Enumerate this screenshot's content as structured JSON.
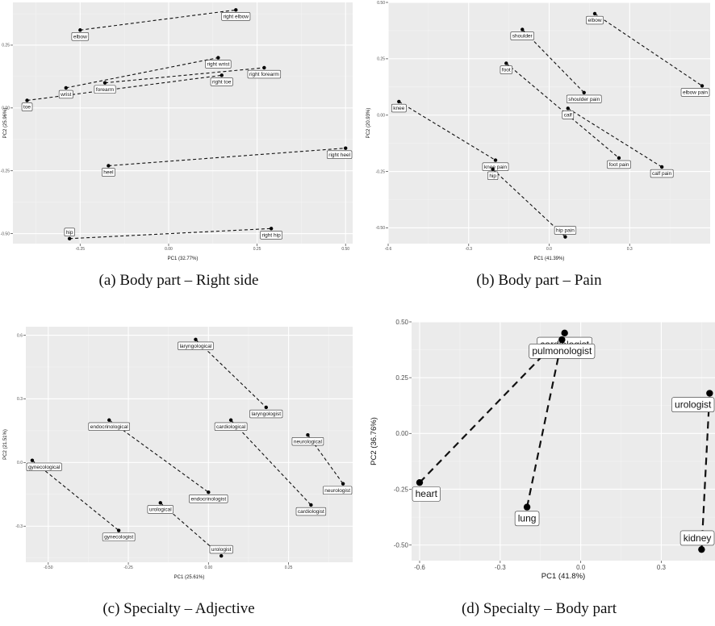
{
  "chart_data": [
    {
      "type": "scatter",
      "xlabel": "PC1 (32.77%)",
      "ylabel": "PC2 (25.96%)",
      "xlim": [
        -0.44,
        0.52
      ],
      "ylim": [
        -0.54,
        0.42
      ],
      "x_ticks": [
        -0.25,
        0.0,
        0.25,
        0.5
      ],
      "x_tick_labels": [
        "-0.25",
        "0.00",
        "0.25",
        "0.50"
      ],
      "y_ticks": [
        -0.5,
        -0.25,
        0.0,
        0.25
      ],
      "y_tick_labels": [
        "-0.50",
        "-0.25",
        "0.00",
        "0.25"
      ],
      "points": [
        {
          "label": "elbow",
          "x": -0.25,
          "y": 0.31
        },
        {
          "label": "right elbow",
          "x": 0.19,
          "y": 0.39
        },
        {
          "label": "forearm",
          "x": -0.18,
          "y": 0.1
        },
        {
          "label": "right forearm",
          "x": 0.27,
          "y": 0.16
        },
        {
          "label": "wrist",
          "x": -0.29,
          "y": 0.08
        },
        {
          "label": "right wrist",
          "x": 0.14,
          "y": 0.2
        },
        {
          "label": "toe",
          "x": -0.4,
          "y": 0.03
        },
        {
          "label": "right toe",
          "x": 0.15,
          "y": 0.13
        },
        {
          "label": "heel",
          "x": -0.17,
          "y": -0.23
        },
        {
          "label": "right heel",
          "x": 0.5,
          "y": -0.16
        },
        {
          "label": "hip",
          "x": -0.28,
          "y": -0.52
        },
        {
          "label": "right hip",
          "x": 0.29,
          "y": -0.48
        }
      ],
      "pairs": [
        [
          "elbow",
          "right elbow"
        ],
        [
          "forearm",
          "right forearm"
        ],
        [
          "wrist",
          "right wrist"
        ],
        [
          "toe",
          "right toe"
        ],
        [
          "heel",
          "right heel"
        ],
        [
          "hip",
          "right hip"
        ]
      ]
    },
    {
      "type": "scatter",
      "xlabel": "PC1 (41.39%)",
      "ylabel": "PC2 (20.93%)",
      "xlim": [
        -0.6,
        0.6
      ],
      "ylim": [
        -0.57,
        0.5
      ],
      "x_ticks": [
        -0.6,
        -0.3,
        0.0,
        0.3
      ],
      "x_tick_labels": [
        "-0.6",
        "-0.3",
        "0.0",
        "0.3"
      ],
      "y_ticks": [
        -0.5,
        -0.25,
        0.0,
        0.25,
        0.5
      ],
      "y_tick_labels": [
        "-0.50",
        "-0.25",
        "0.00",
        "0.25",
        "0.50"
      ],
      "points": [
        {
          "label": "elbow",
          "x": 0.17,
          "y": 0.45
        },
        {
          "label": "elbow pain",
          "x": 0.57,
          "y": 0.13
        },
        {
          "label": "shoulder",
          "x": -0.1,
          "y": 0.38
        },
        {
          "label": "shoulder pain",
          "x": 0.13,
          "y": 0.1
        },
        {
          "label": "foot",
          "x": -0.16,
          "y": 0.23
        },
        {
          "label": "foot pain",
          "x": 0.26,
          "y": -0.19
        },
        {
          "label": "knee",
          "x": -0.56,
          "y": 0.06
        },
        {
          "label": "knee pain",
          "x": -0.2,
          "y": -0.2
        },
        {
          "label": "calf",
          "x": 0.07,
          "y": 0.03
        },
        {
          "label": "calf pain",
          "x": 0.42,
          "y": -0.23
        },
        {
          "label": "hip",
          "x": -0.21,
          "y": -0.24
        },
        {
          "label": "hip pain",
          "x": 0.06,
          "y": -0.54
        }
      ],
      "pairs": [
        [
          "elbow",
          "elbow pain"
        ],
        [
          "shoulder",
          "shoulder pain"
        ],
        [
          "foot",
          "foot pain"
        ],
        [
          "knee",
          "knee pain"
        ],
        [
          "calf",
          "calf pain"
        ],
        [
          "hip",
          "hip pain"
        ]
      ]
    },
    {
      "type": "scatter",
      "xlabel": "PC1 (25.61%)",
      "ylabel": "PC2 (21.51%)",
      "xlim": [
        -0.57,
        0.45
      ],
      "ylim": [
        -0.47,
        0.64
      ],
      "x_ticks": [
        -0.5,
        -0.25,
        0.0,
        0.25
      ],
      "x_tick_labels": [
        "-0.50",
        "-0.25",
        "0.00",
        "0.25"
      ],
      "y_ticks": [
        -0.3,
        0.0,
        0.3,
        0.6
      ],
      "y_tick_labels": [
        "-0.3",
        "0.0",
        "0.3",
        "0.6"
      ],
      "points": [
        {
          "label": "laryngological",
          "x": -0.04,
          "y": 0.58
        },
        {
          "label": "laryngologist",
          "x": 0.18,
          "y": 0.26
        },
        {
          "label": "endocrinological",
          "x": -0.31,
          "y": 0.2
        },
        {
          "label": "endocrinologist",
          "x": 0.0,
          "y": -0.14
        },
        {
          "label": "cardiological",
          "x": 0.07,
          "y": 0.2
        },
        {
          "label": "cardiologist",
          "x": 0.32,
          "y": -0.2
        },
        {
          "label": "neurological",
          "x": 0.31,
          "y": 0.13
        },
        {
          "label": "neurologist",
          "x": 0.42,
          "y": -0.1
        },
        {
          "label": "gynecological",
          "x": -0.55,
          "y": 0.01
        },
        {
          "label": "gynecologist",
          "x": -0.28,
          "y": -0.32
        },
        {
          "label": "urological",
          "x": -0.15,
          "y": -0.19
        },
        {
          "label": "urologist",
          "x": 0.04,
          "y": -0.44
        }
      ],
      "pairs": [
        [
          "laryngological",
          "laryngologist"
        ],
        [
          "endocrinological",
          "endocrinologist"
        ],
        [
          "cardiological",
          "cardiologist"
        ],
        [
          "neurological",
          "neurologist"
        ],
        [
          "gynecological",
          "gynecologist"
        ],
        [
          "urological",
          "urologist"
        ]
      ]
    },
    {
      "type": "scatter",
      "xlabel": "PC1 (41.8%)",
      "ylabel": "PC2 (36.76%)",
      "xlim": [
        -0.63,
        0.5
      ],
      "ylim": [
        -0.57,
        0.5
      ],
      "x_ticks": [
        -0.6,
        -0.3,
        0.0,
        0.3
      ],
      "x_tick_labels": [
        "-0.6",
        "-0.3",
        "0.0",
        "0.3"
      ],
      "y_ticks": [
        -0.5,
        -0.25,
        0.0,
        0.25,
        0.5
      ],
      "y_tick_labels": [
        "-0.50",
        "-0.25",
        "0.00",
        "0.25",
        "0.50"
      ],
      "points": [
        {
          "label": "cardiologist",
          "x": -0.06,
          "y": 0.45
        },
        {
          "label": "pulmonologist",
          "x": -0.07,
          "y": 0.42
        },
        {
          "label": "urologist",
          "x": 0.48,
          "y": 0.18
        },
        {
          "label": "heart",
          "x": -0.6,
          "y": -0.22
        },
        {
          "label": "lung",
          "x": -0.2,
          "y": -0.33
        },
        {
          "label": "kidney",
          "x": 0.45,
          "y": -0.52
        }
      ],
      "pairs": [
        [
          "heart",
          "cardiologist"
        ],
        [
          "lung",
          "pulmonologist"
        ],
        [
          "kidney",
          "urologist"
        ]
      ]
    }
  ],
  "captions": [
    "(a) Body part – Right side",
    "(b) Body part – Pain",
    "(c) Specialty – Adjective",
    "(d) Specialty – Body part"
  ]
}
